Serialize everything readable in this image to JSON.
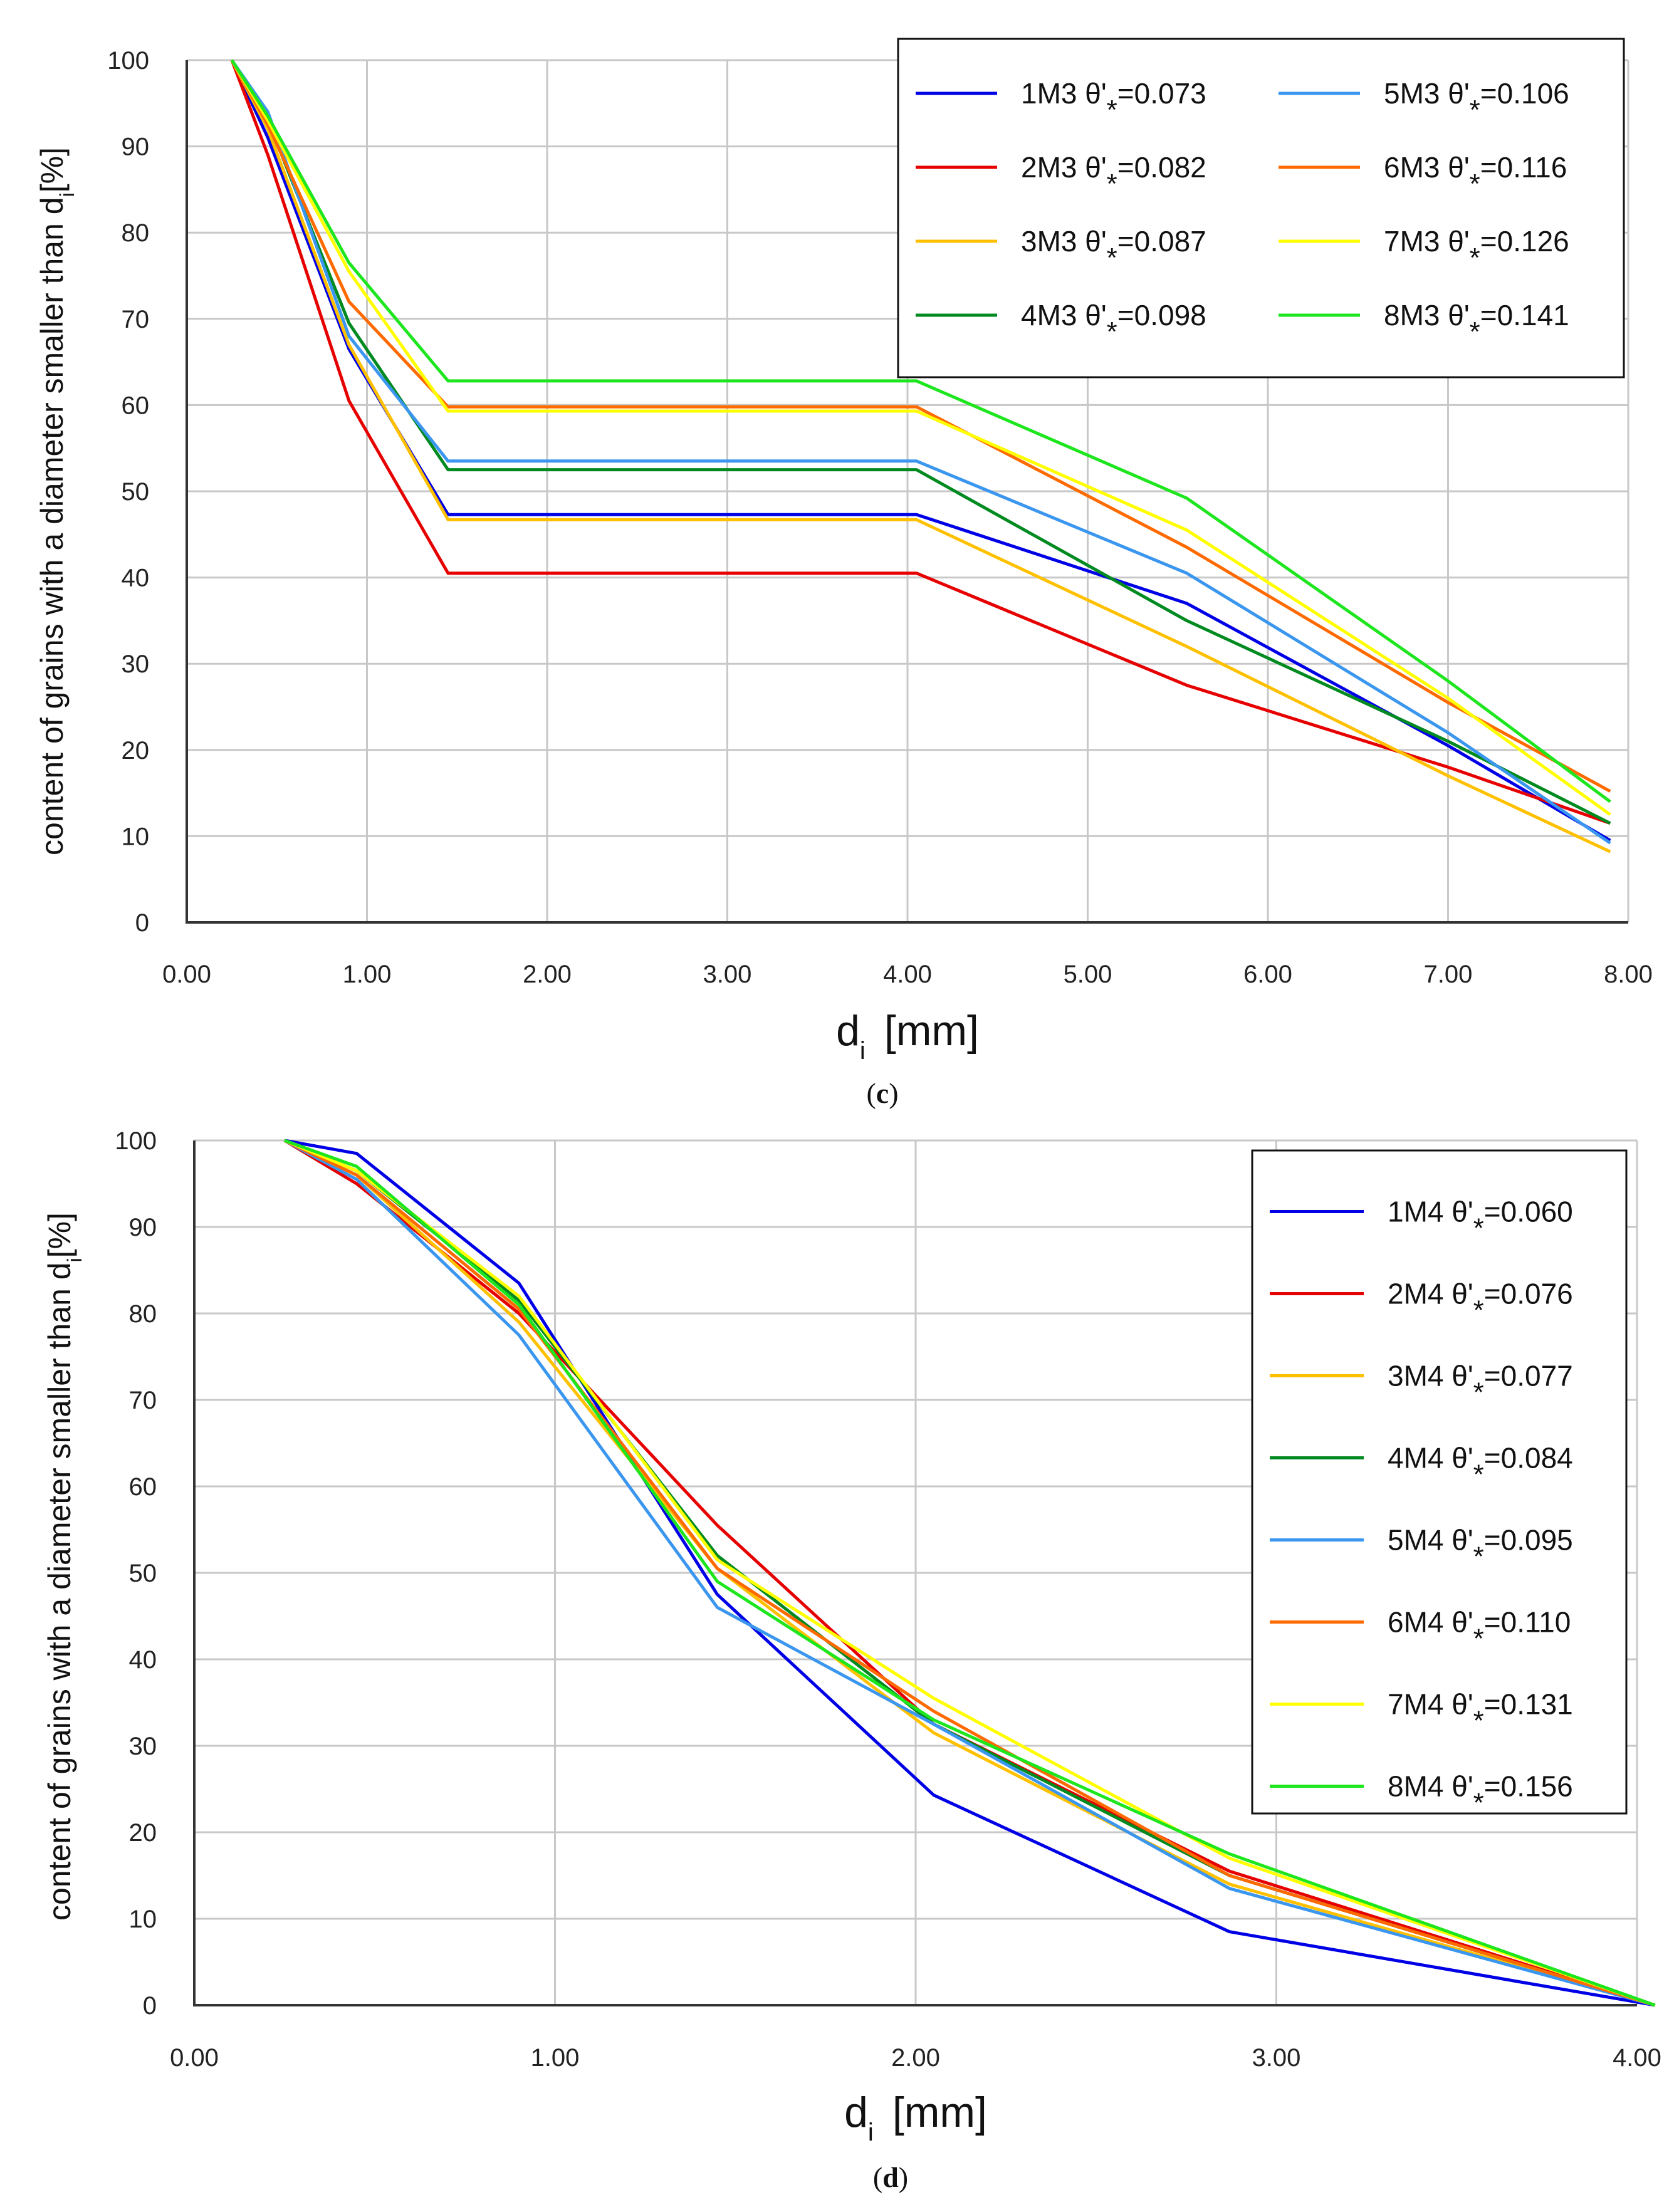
{
  "chart_data": [
    {
      "type": "line",
      "caption": "(c)",
      "caption_letter": "c",
      "xlabel_main": "d",
      "xlabel_sub": "i",
      "xlabel_unit": "[mm]",
      "ylabel_main": "content of grains with a diameter smaller than d",
      "ylabel_sub": "i",
      "ylabel_unit": "[%]",
      "xlim": [
        0,
        8
      ],
      "ylim": [
        0,
        100
      ],
      "xticks": [
        "0.00",
        "1.00",
        "2.00",
        "3.00",
        "4.00",
        "5.00",
        "6.00",
        "7.00",
        "8.00"
      ],
      "yticks": [
        "0",
        "10",
        "20",
        "30",
        "40",
        "50",
        "60",
        "70",
        "80",
        "90",
        "100"
      ],
      "grid": true,
      "legend_position": "top-right",
      "legend_columns": 2,
      "series": [
        {
          "name": "1M3",
          "label_prefix": "1M3 θ'",
          "label_star": "*",
          "label_value": "=0.073",
          "color": "#0000e6",
          "x": [
            0.25,
            0.45,
            0.9,
            1.45,
            4.05,
            5.55,
            7.0,
            7.9
          ],
          "y": [
            100,
            91,
            66.5,
            47.3,
            47.3,
            37,
            20.5,
            9.5
          ]
        },
        {
          "name": "2M3",
          "label_prefix": "2M3 θ'",
          "label_star": "*",
          "label_value": "=0.082",
          "color": "#e60000",
          "x": [
            0.25,
            0.45,
            0.9,
            1.45,
            4.05,
            5.55,
            7.0,
            7.9
          ],
          "y": [
            100,
            89,
            60.5,
            40.5,
            40.5,
            27.5,
            18,
            11.5
          ]
        },
        {
          "name": "3M3",
          "label_prefix": "3M3 θ'",
          "label_star": "*",
          "label_value": "=0.087",
          "color": "#ffc000",
          "x": [
            0.25,
            0.45,
            0.9,
            1.45,
            4.05,
            5.55,
            7.0,
            7.9
          ],
          "y": [
            100,
            92,
            67,
            46.7,
            46.7,
            32,
            17,
            8.2
          ]
        },
        {
          "name": "4M3",
          "label_prefix": "4M3 θ'",
          "label_star": "*",
          "label_value": "=0.098",
          "color": "#008a20",
          "x": [
            0.25,
            0.45,
            0.9,
            1.45,
            4.05,
            5.55,
            7.0,
            7.9
          ],
          "y": [
            100,
            93,
            69.5,
            52.5,
            52.5,
            35,
            21,
            11.5
          ]
        },
        {
          "name": "5M3",
          "label_prefix": "5M3 θ'",
          "label_star": "*",
          "label_value": "=0.106",
          "color": "#3a96ee",
          "x": [
            0.25,
            0.45,
            0.9,
            1.45,
            4.05,
            5.55,
            7.0,
            7.9
          ],
          "y": [
            100,
            94,
            68,
            53.5,
            53.5,
            40.5,
            22,
            9.2
          ]
        },
        {
          "name": "6M3",
          "label_prefix": "6M3 θ'",
          "label_star": "*",
          "label_value": "=0.116",
          "color": "#ff6a00",
          "x": [
            0.25,
            0.45,
            0.9,
            1.45,
            4.05,
            5.55,
            7.0,
            7.9
          ],
          "y": [
            100,
            92.5,
            72,
            59.8,
            59.8,
            43.5,
            25.5,
            15.2
          ]
        },
        {
          "name": "7M3",
          "label_prefix": "7M3 θ'",
          "label_star": "*",
          "label_value": "=0.126",
          "color": "#ffff00",
          "x": [
            0.25,
            0.45,
            0.9,
            1.45,
            4.05,
            5.55,
            7.0,
            7.9
          ],
          "y": [
            100,
            93,
            75.5,
            59.3,
            59.3,
            45.5,
            26,
            12.5
          ]
        },
        {
          "name": "8M3",
          "label_prefix": "8M3 θ'",
          "label_star": "*",
          "label_value": "=0.141",
          "color": "#1ee61e",
          "x": [
            0.25,
            0.45,
            0.9,
            1.45,
            4.05,
            5.55,
            7.0,
            7.9
          ],
          "y": [
            100,
            93.5,
            76.5,
            62.8,
            62.8,
            49.2,
            28,
            14
          ]
        }
      ]
    },
    {
      "type": "line",
      "caption": "(d)",
      "caption_letter": "d",
      "xlabel_main": "d",
      "xlabel_sub": "i",
      "xlabel_unit": "[mm]",
      "ylabel_main": "content of grains with a diameter smaller than d",
      "ylabel_sub": "i",
      "ylabel_unit": "[%]",
      "xlim": [
        0,
        4
      ],
      "ylim": [
        0,
        100
      ],
      "xticks": [
        "0.00",
        "1.00",
        "2.00",
        "3.00",
        "4.00"
      ],
      "yticks": [
        "0",
        "10",
        "20",
        "30",
        "40",
        "50",
        "60",
        "70",
        "80",
        "90",
        "100"
      ],
      "grid": true,
      "legend_position": "top-right",
      "legend_columns": 1,
      "series": [
        {
          "name": "1M4",
          "label_prefix": "1M4 θ'",
          "label_star": "*",
          "label_value": "=0.060",
          "color": "#0000e6",
          "x": [
            0.25,
            0.45,
            0.9,
            1.45,
            2.05,
            2.87,
            4.05
          ],
          "y": [
            100,
            98.5,
            83.5,
            47.5,
            24.3,
            8.5,
            0
          ]
        },
        {
          "name": "2M4",
          "label_prefix": "2M4 θ'",
          "label_star": "*",
          "label_value": "=0.076",
          "color": "#e60000",
          "x": [
            0.25,
            0.45,
            0.9,
            1.45,
            2.05,
            2.87,
            4.05
          ],
          "y": [
            100,
            95,
            80,
            55.5,
            32.5,
            15.5,
            0
          ]
        },
        {
          "name": "3M4",
          "label_prefix": "3M4 θ'",
          "label_star": "*",
          "label_value": "=0.077",
          "color": "#ffc000",
          "x": [
            0.25,
            0.45,
            0.9,
            1.45,
            2.05,
            2.87,
            4.05
          ],
          "y": [
            100,
            96,
            79,
            50.5,
            31.5,
            14,
            0
          ]
        },
        {
          "name": "4M4",
          "label_prefix": "4M4 θ'",
          "label_star": "*",
          "label_value": "=0.084",
          "color": "#008a20",
          "x": [
            0.25,
            0.45,
            0.9,
            1.45,
            2.05,
            2.87,
            4.05
          ],
          "y": [
            100,
            96.5,
            81.5,
            52,
            32.5,
            15,
            0
          ]
        },
        {
          "name": "5M4",
          "label_prefix": "5M4 θ'",
          "label_star": "*",
          "label_value": "=0.095",
          "color": "#3a96ee",
          "x": [
            0.25,
            0.45,
            0.9,
            1.45,
            2.05,
            2.87,
            4.05
          ],
          "y": [
            100,
            95.5,
            77.5,
            46,
            32.5,
            13.5,
            0
          ]
        },
        {
          "name": "6M4",
          "label_prefix": "6M4 θ'",
          "label_star": "*",
          "label_value": "=0.110",
          "color": "#ff6a00",
          "x": [
            0.25,
            0.45,
            0.9,
            1.45,
            2.05,
            2.87,
            4.05
          ],
          "y": [
            100,
            96,
            80.5,
            50.5,
            34,
            15,
            0
          ]
        },
        {
          "name": "7M4",
          "label_prefix": "7M4 θ'",
          "label_star": "*",
          "label_value": "=0.131",
          "color": "#ffff00",
          "x": [
            0.25,
            0.45,
            0.9,
            1.45,
            2.05,
            2.87,
            4.05
          ],
          "y": [
            100,
            96.5,
            82,
            51.5,
            35.5,
            17,
            0
          ]
        },
        {
          "name": "8M4",
          "label_prefix": "8M4 θ'",
          "label_star": "*",
          "label_value": "=0.156",
          "color": "#1ee61e",
          "x": [
            0.25,
            0.45,
            0.9,
            1.45,
            2.05,
            2.87,
            4.05
          ],
          "y": [
            100,
            97,
            81,
            49,
            33,
            17.5,
            0
          ]
        }
      ]
    }
  ]
}
